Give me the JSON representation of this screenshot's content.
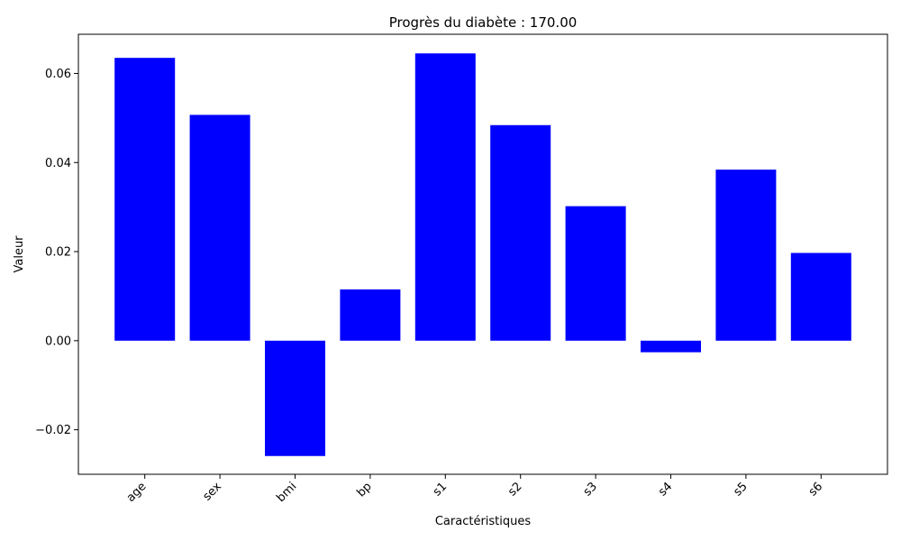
{
  "chart_data": {
    "type": "bar",
    "title": "Progrès du diabète : 170.00",
    "xlabel": "Caractéristiques",
    "ylabel": "Valeur",
    "categories": [
      "age",
      "sex",
      "bmi",
      "bp",
      "s1",
      "s2",
      "s3",
      "s4",
      "s5",
      "s6"
    ],
    "values": [
      0.0635,
      0.0507,
      -0.0259,
      0.0115,
      0.0645,
      0.0484,
      0.0302,
      -0.0026,
      0.0384,
      0.0197
    ],
    "ylim": [
      -0.03,
      0.0688
    ],
    "yticks": [
      -0.02,
      0.0,
      0.02,
      0.04,
      0.06
    ],
    "ytick_labels": [
      "−0.02",
      "0.00",
      "0.02",
      "0.04",
      "0.06"
    ],
    "bar_color": "#0000ff",
    "grid": false,
    "legend": "none"
  }
}
